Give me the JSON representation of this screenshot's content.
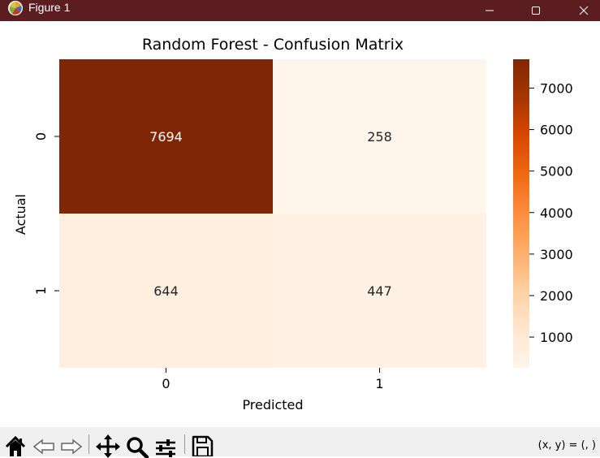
{
  "window": {
    "title": "Figure 1"
  },
  "chart_data": {
    "type": "heatmap",
    "title": "Random Forest - Confusion Matrix",
    "xlabel": "Predicted",
    "ylabel": "Actual",
    "x_categories": [
      "0",
      "1"
    ],
    "y_categories": [
      "0",
      "1"
    ],
    "values": [
      [
        7694,
        258
      ],
      [
        644,
        447
      ]
    ],
    "colormap": "Oranges",
    "colorbar": {
      "ticks": [
        1000,
        2000,
        3000,
        4000,
        5000,
        6000,
        7000
      ],
      "range": [
        258,
        7694
      ]
    }
  },
  "toolbar": {
    "buttons": [
      {
        "name": "home-button",
        "icon": "home-icon"
      },
      {
        "name": "back-button",
        "icon": "back-arrow-icon"
      },
      {
        "name": "forward-button",
        "icon": "forward-arrow-icon"
      },
      {
        "name": "pan-button",
        "icon": "pan-move-icon"
      },
      {
        "name": "zoom-button",
        "icon": "zoom-magnifier-icon"
      },
      {
        "name": "configure-subplots-button",
        "icon": "sliders-icon"
      },
      {
        "name": "save-button",
        "icon": "save-disk-icon"
      }
    ],
    "coordinates": "(x, y) = (, )"
  },
  "colors": {
    "titlebar": "#5c1d21",
    "toolbar": "#f0f0f0",
    "cmap_low": "#fff5eb",
    "cmap_high": "#7f2704"
  }
}
